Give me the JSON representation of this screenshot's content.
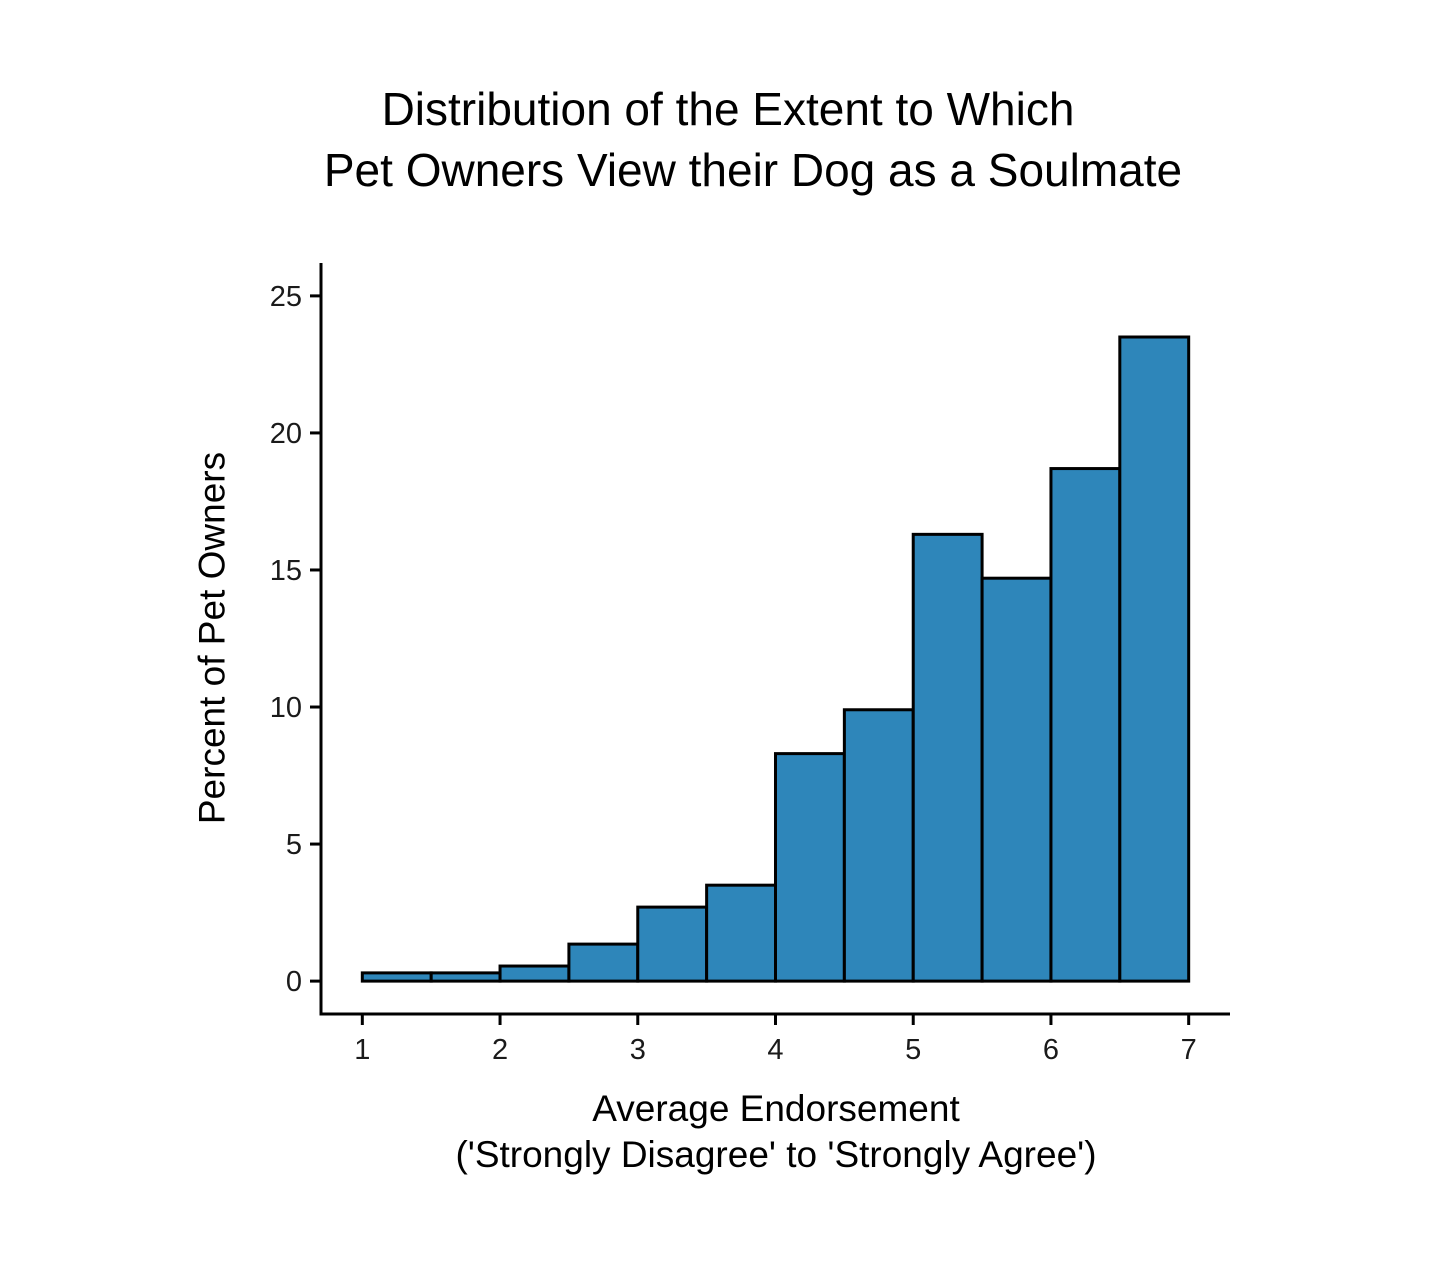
{
  "chart_data": {
    "type": "bar",
    "title_lines": [
      "Distribution of the Extent to Which",
      "Pet Owners View their Dog as a Soulmate"
    ],
    "xlabel_lines": [
      "Average Endorsement",
      "('Strongly Disagree' to 'Strongly Agree')"
    ],
    "ylabel": "Percent of Pet Owners",
    "bin_edges": [
      1,
      1.5,
      2,
      2.5,
      3,
      3.5,
      4,
      4.5,
      5,
      5.5,
      6,
      6.5,
      7
    ],
    "values": [
      0.3,
      0.3,
      0.55,
      1.35,
      2.7,
      3.5,
      8.3,
      9.9,
      16.3,
      14.7,
      18.7,
      23.5
    ],
    "xlim": [
      0.7,
      7.3
    ],
    "ylim": [
      -1.2,
      26.2
    ],
    "xticks": [
      1,
      2,
      3,
      4,
      5,
      6,
      7
    ],
    "yticks": [
      0,
      5,
      10,
      15,
      20,
      25
    ],
    "bar_color": "#2e86ba",
    "bar_edge_color": "#000000",
    "grid": false,
    "legend": "none"
  }
}
